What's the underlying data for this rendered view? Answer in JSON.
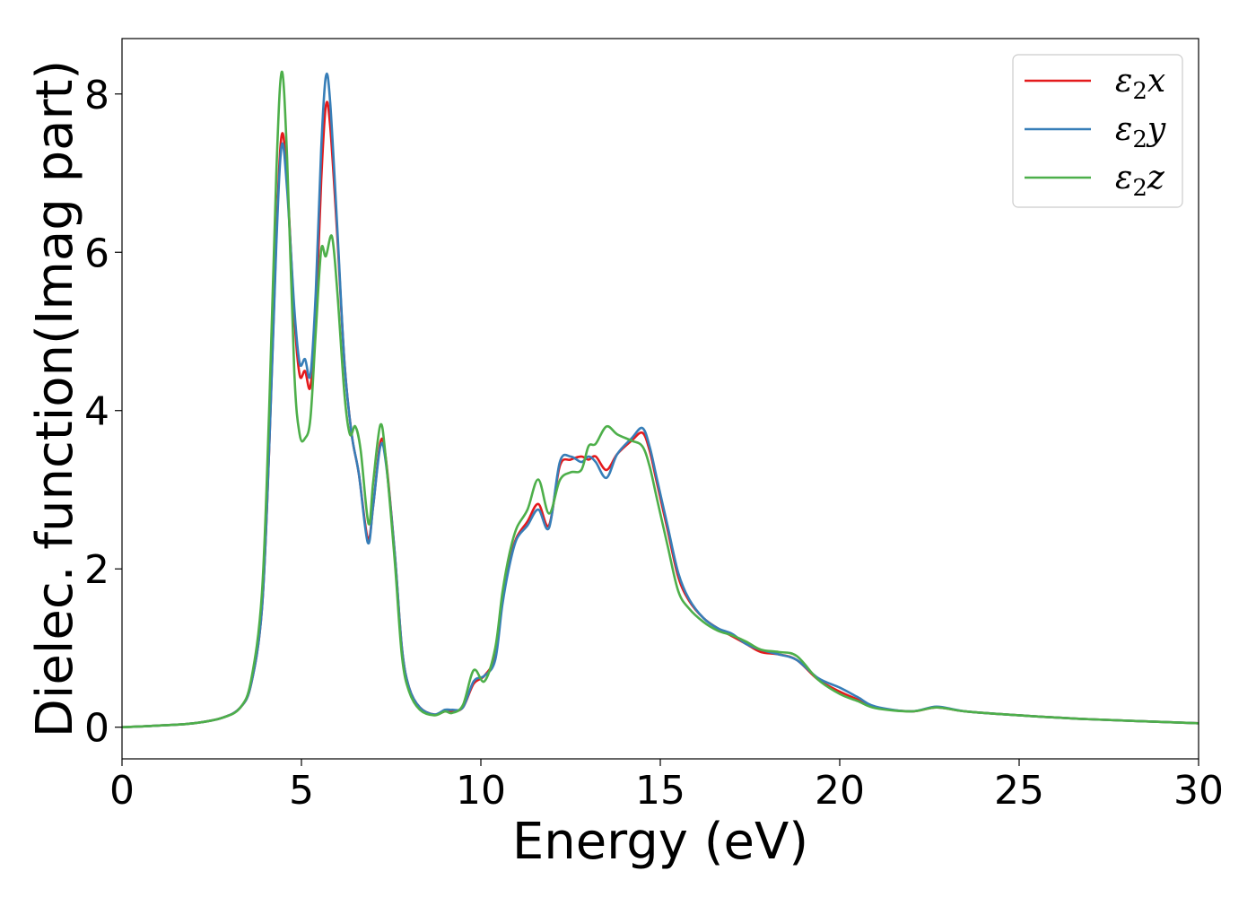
{
  "chart_data": {
    "type": "line",
    "title": "",
    "xlabel": "Energy (eV)",
    "ylabel": "Dielec. function(Imag part)",
    "xlim": [
      0,
      30
    ],
    "ylim": [
      -0.4,
      8.7
    ],
    "xticks": [
      0,
      5,
      10,
      15,
      20,
      25,
      30
    ],
    "yticks": [
      0,
      2,
      4,
      6,
      8
    ],
    "grid": false,
    "legend_position": "top-right",
    "series": [
      {
        "name": "ε₂x",
        "legend_main": "ε",
        "legend_sub": "2",
        "legend_var": "x",
        "color": "#e41a1c",
        "points": [
          [
            0,
            0.0
          ],
          [
            1,
            0.02
          ],
          [
            2,
            0.05
          ],
          [
            2.8,
            0.12
          ],
          [
            3.3,
            0.25
          ],
          [
            3.6,
            0.55
          ],
          [
            3.9,
            1.5
          ],
          [
            4.1,
            3.5
          ],
          [
            4.3,
            6.2
          ],
          [
            4.45,
            7.48
          ],
          [
            4.6,
            6.9
          ],
          [
            4.8,
            5.2
          ],
          [
            4.95,
            4.45
          ],
          [
            5.1,
            4.5
          ],
          [
            5.25,
            4.3
          ],
          [
            5.4,
            5.2
          ],
          [
            5.55,
            6.9
          ],
          [
            5.68,
            7.85
          ],
          [
            5.8,
            7.6
          ],
          [
            6.0,
            6.2
          ],
          [
            6.2,
            4.6
          ],
          [
            6.4,
            3.7
          ],
          [
            6.6,
            3.2
          ],
          [
            6.85,
            2.38
          ],
          [
            7.0,
            2.8
          ],
          [
            7.2,
            3.6
          ],
          [
            7.35,
            3.4
          ],
          [
            7.6,
            2.2
          ],
          [
            7.8,
            1.0
          ],
          [
            8.0,
            0.5
          ],
          [
            8.3,
            0.25
          ],
          [
            8.7,
            0.16
          ],
          [
            9.0,
            0.2
          ],
          [
            9.2,
            0.2
          ],
          [
            9.5,
            0.25
          ],
          [
            9.8,
            0.55
          ],
          [
            10.1,
            0.65
          ],
          [
            10.4,
            0.9
          ],
          [
            10.6,
            1.6
          ],
          [
            10.8,
            2.1
          ],
          [
            11.0,
            2.4
          ],
          [
            11.3,
            2.6
          ],
          [
            11.6,
            2.82
          ],
          [
            11.9,
            2.55
          ],
          [
            12.2,
            3.3
          ],
          [
            12.5,
            3.38
          ],
          [
            12.8,
            3.42
          ],
          [
            13.0,
            3.38
          ],
          [
            13.2,
            3.42
          ],
          [
            13.5,
            3.25
          ],
          [
            13.8,
            3.45
          ],
          [
            14.2,
            3.62
          ],
          [
            14.5,
            3.72
          ],
          [
            14.7,
            3.5
          ],
          [
            14.9,
            3.1
          ],
          [
            15.2,
            2.5
          ],
          [
            15.5,
            1.9
          ],
          [
            15.8,
            1.6
          ],
          [
            16.2,
            1.38
          ],
          [
            16.6,
            1.25
          ],
          [
            17.0,
            1.15
          ],
          [
            17.4,
            1.05
          ],
          [
            17.8,
            0.95
          ],
          [
            18.3,
            0.92
          ],
          [
            18.8,
            0.85
          ],
          [
            19.4,
            0.6
          ],
          [
            20.0,
            0.45
          ],
          [
            20.5,
            0.35
          ],
          [
            21.0,
            0.25
          ],
          [
            22.0,
            0.2
          ],
          [
            22.7,
            0.25
          ],
          [
            23.5,
            0.2
          ],
          [
            25,
            0.15
          ],
          [
            27,
            0.1
          ],
          [
            30,
            0.05
          ]
        ]
      },
      {
        "name": "ε₂y",
        "legend_main": "ε",
        "legend_sub": "2",
        "legend_var": "y",
        "color": "#377eb8",
        "points": [
          [
            0,
            0.0
          ],
          [
            1,
            0.02
          ],
          [
            2,
            0.05
          ],
          [
            2.8,
            0.12
          ],
          [
            3.3,
            0.25
          ],
          [
            3.6,
            0.55
          ],
          [
            3.9,
            1.5
          ],
          [
            4.1,
            3.5
          ],
          [
            4.3,
            6.1
          ],
          [
            4.45,
            7.35
          ],
          [
            4.6,
            6.8
          ],
          [
            4.8,
            5.3
          ],
          [
            4.95,
            4.6
          ],
          [
            5.1,
            4.65
          ],
          [
            5.25,
            4.45
          ],
          [
            5.4,
            5.5
          ],
          [
            5.55,
            7.3
          ],
          [
            5.68,
            8.22
          ],
          [
            5.8,
            7.9
          ],
          [
            6.0,
            6.3
          ],
          [
            6.2,
            4.6
          ],
          [
            6.4,
            3.7
          ],
          [
            6.6,
            3.2
          ],
          [
            6.85,
            2.33
          ],
          [
            7.0,
            2.8
          ],
          [
            7.2,
            3.55
          ],
          [
            7.35,
            3.35
          ],
          [
            7.6,
            2.2
          ],
          [
            7.8,
            1.0
          ],
          [
            8.0,
            0.5
          ],
          [
            8.3,
            0.25
          ],
          [
            8.7,
            0.16
          ],
          [
            9.0,
            0.22
          ],
          [
            9.2,
            0.22
          ],
          [
            9.5,
            0.25
          ],
          [
            9.8,
            0.58
          ],
          [
            10.1,
            0.65
          ],
          [
            10.4,
            0.85
          ],
          [
            10.6,
            1.55
          ],
          [
            10.8,
            2.05
          ],
          [
            11.0,
            2.38
          ],
          [
            11.3,
            2.55
          ],
          [
            11.6,
            2.75
          ],
          [
            11.9,
            2.52
          ],
          [
            12.2,
            3.35
          ],
          [
            12.5,
            3.42
          ],
          [
            12.8,
            3.35
          ],
          [
            13.0,
            3.42
          ],
          [
            13.2,
            3.35
          ],
          [
            13.5,
            3.15
          ],
          [
            13.8,
            3.45
          ],
          [
            14.2,
            3.65
          ],
          [
            14.5,
            3.78
          ],
          [
            14.7,
            3.55
          ],
          [
            14.9,
            3.15
          ],
          [
            15.2,
            2.55
          ],
          [
            15.5,
            1.95
          ],
          [
            15.8,
            1.62
          ],
          [
            16.2,
            1.38
          ],
          [
            16.6,
            1.25
          ],
          [
            17.0,
            1.18
          ],
          [
            17.4,
            1.05
          ],
          [
            17.8,
            0.98
          ],
          [
            18.3,
            0.92
          ],
          [
            18.8,
            0.85
          ],
          [
            19.4,
            0.62
          ],
          [
            20.0,
            0.5
          ],
          [
            20.5,
            0.38
          ],
          [
            21.0,
            0.26
          ],
          [
            22.0,
            0.2
          ],
          [
            22.7,
            0.26
          ],
          [
            23.5,
            0.2
          ],
          [
            25,
            0.15
          ],
          [
            27,
            0.1
          ],
          [
            30,
            0.05
          ]
        ]
      },
      {
        "name": "ε₂z",
        "legend_main": "ε",
        "legend_sub": "2",
        "legend_var": "z",
        "color": "#4daf4a",
        "points": [
          [
            0,
            0.0
          ],
          [
            1,
            0.02
          ],
          [
            2,
            0.05
          ],
          [
            2.8,
            0.12
          ],
          [
            3.3,
            0.25
          ],
          [
            3.6,
            0.6
          ],
          [
            3.9,
            1.7
          ],
          [
            4.1,
            4.0
          ],
          [
            4.3,
            7.0
          ],
          [
            4.45,
            8.28
          ],
          [
            4.6,
            7.2
          ],
          [
            4.8,
            4.5
          ],
          [
            4.95,
            3.7
          ],
          [
            5.1,
            3.65
          ],
          [
            5.25,
            3.9
          ],
          [
            5.4,
            5.0
          ],
          [
            5.55,
            6.03
          ],
          [
            5.68,
            5.95
          ],
          [
            5.85,
            6.2
          ],
          [
            6.0,
            5.5
          ],
          [
            6.2,
            4.2
          ],
          [
            6.35,
            3.7
          ],
          [
            6.5,
            3.8
          ],
          [
            6.65,
            3.5
          ],
          [
            6.87,
            2.57
          ],
          [
            7.0,
            3.1
          ],
          [
            7.2,
            3.82
          ],
          [
            7.35,
            3.4
          ],
          [
            7.6,
            2.1
          ],
          [
            7.8,
            0.9
          ],
          [
            8.0,
            0.45
          ],
          [
            8.3,
            0.22
          ],
          [
            8.7,
            0.15
          ],
          [
            9.0,
            0.2
          ],
          [
            9.2,
            0.18
          ],
          [
            9.5,
            0.28
          ],
          [
            9.8,
            0.72
          ],
          [
            10.1,
            0.58
          ],
          [
            10.4,
            1.0
          ],
          [
            10.6,
            1.7
          ],
          [
            10.8,
            2.2
          ],
          [
            11.0,
            2.52
          ],
          [
            11.3,
            2.75
          ],
          [
            11.6,
            3.13
          ],
          [
            11.9,
            2.7
          ],
          [
            12.2,
            3.12
          ],
          [
            12.5,
            3.22
          ],
          [
            12.8,
            3.25
          ],
          [
            13.0,
            3.55
          ],
          [
            13.2,
            3.58
          ],
          [
            13.5,
            3.8
          ],
          [
            13.8,
            3.7
          ],
          [
            14.2,
            3.62
          ],
          [
            14.5,
            3.55
          ],
          [
            14.7,
            3.3
          ],
          [
            14.9,
            2.9
          ],
          [
            15.2,
            2.3
          ],
          [
            15.5,
            1.72
          ],
          [
            15.8,
            1.5
          ],
          [
            16.2,
            1.33
          ],
          [
            16.6,
            1.22
          ],
          [
            17.0,
            1.16
          ],
          [
            17.4,
            1.08
          ],
          [
            17.8,
            0.98
          ],
          [
            18.3,
            0.95
          ],
          [
            18.8,
            0.9
          ],
          [
            19.4,
            0.6
          ],
          [
            20.0,
            0.42
          ],
          [
            20.5,
            0.33
          ],
          [
            21.0,
            0.24
          ],
          [
            22.0,
            0.2
          ],
          [
            22.7,
            0.25
          ],
          [
            23.5,
            0.2
          ],
          [
            25,
            0.15
          ],
          [
            27,
            0.1
          ],
          [
            30,
            0.05
          ]
        ]
      }
    ]
  }
}
